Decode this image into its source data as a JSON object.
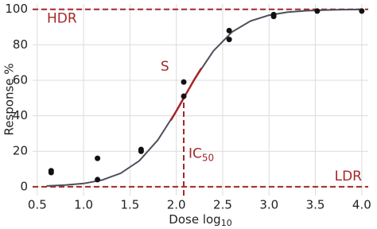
{
  "chart_data": {
    "type": "scatter",
    "xlabel": {
      "text": "Dose log",
      "sub": "10"
    },
    "ylabel": "Response %",
    "xlim": [
      0.45,
      4.07
    ],
    "ylim": [
      -5,
      103
    ],
    "xticks": [
      0.5,
      {
        "value": 1,
        "label": "1.0"
      },
      1.5,
      {
        "value": 2,
        "label": "2.0"
      },
      2.5,
      {
        "value": 3,
        "label": "3.0"
      },
      3.5,
      {
        "value": 4,
        "label": "4.0"
      }
    ],
    "yticks": [
      0,
      20,
      40,
      60,
      80,
      100
    ],
    "grid": true,
    "points": {
      "color": "#111111",
      "x": [
        0.65,
        0.65,
        1.15,
        1.15,
        1.62,
        1.62,
        2.08,
        2.08,
        2.57,
        2.57,
        3.05,
        3.05,
        3.52,
        4.0
      ],
      "values": [
        9,
        8,
        16,
        4,
        21,
        20,
        59,
        51,
        88,
        83,
        97,
        96,
        99,
        99
      ]
    },
    "curve": {
      "color": "#4d4d5c",
      "x": [
        0.6,
        0.8,
        1.0,
        1.2,
        1.4,
        1.6,
        1.8,
        2.0,
        2.08,
        2.2,
        2.4,
        2.6,
        2.8,
        3.0,
        3.2,
        3.4,
        3.6,
        3.8,
        4.0
      ],
      "values": [
        0.4,
        0.9,
        1.8,
        3.8,
        7.6,
        14.6,
        26.3,
        42.7,
        50,
        60.9,
        76.5,
        87.2,
        93.4,
        96.7,
        98.4,
        99.2,
        99.6,
        99.8,
        99.9
      ]
    },
    "segment": {
      "label": "S",
      "color": "#a3282a",
      "x": [
        1.94,
        2.0,
        2.08,
        2.2,
        2.27
      ],
      "values": [
        37.4,
        42.7,
        50,
        60.9,
        66.8
      ]
    },
    "ref_color": "#a3282a",
    "reference_lines": [
      {
        "axis": "y",
        "value": 100,
        "label": "HDR"
      },
      {
        "axis": "y",
        "value": 0,
        "label": "LDR"
      },
      {
        "axis": "x",
        "value": 2.08,
        "to": 50,
        "label": {
          "text": "IC",
          "sub": "50"
        }
      }
    ]
  }
}
